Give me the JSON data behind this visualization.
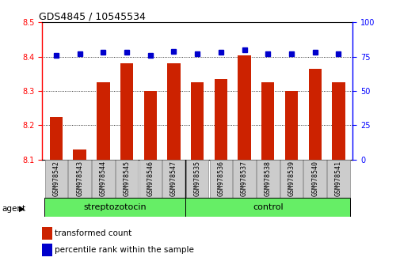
{
  "title": "GDS4845 / 10545534",
  "categories": [
    "GSM978542",
    "GSM978543",
    "GSM978544",
    "GSM978545",
    "GSM978546",
    "GSM978547",
    "GSM978535",
    "GSM978536",
    "GSM978537",
    "GSM978538",
    "GSM978539",
    "GSM978540",
    "GSM978541"
  ],
  "red_values": [
    8.225,
    8.13,
    8.325,
    8.38,
    8.3,
    8.38,
    8.325,
    8.335,
    8.405,
    8.325,
    8.3,
    8.365,
    8.325
  ],
  "blue_values": [
    76,
    77,
    78,
    78,
    76,
    79,
    77,
    78,
    80,
    77,
    77,
    78,
    77
  ],
  "ylim_left": [
    8.1,
    8.5
  ],
  "ylim_right": [
    0,
    100
  ],
  "y_ticks_left": [
    8.1,
    8.2,
    8.3,
    8.4,
    8.5
  ],
  "y_ticks_right": [
    0,
    25,
    50,
    75,
    100
  ],
  "group_divider": 6,
  "bar_color": "#CC2200",
  "dot_color": "#0000CC",
  "bar_bottom": 8.1,
  "legend_items": [
    {
      "label": "transformed count",
      "color": "#CC2200"
    },
    {
      "label": "percentile rank within the sample",
      "color": "#0000CC"
    }
  ],
  "group_labels": [
    "streptozotocin",
    "control"
  ],
  "group_color": "#66EE66",
  "label_bg_color": "#CCCCCC",
  "agent_label": "agent"
}
